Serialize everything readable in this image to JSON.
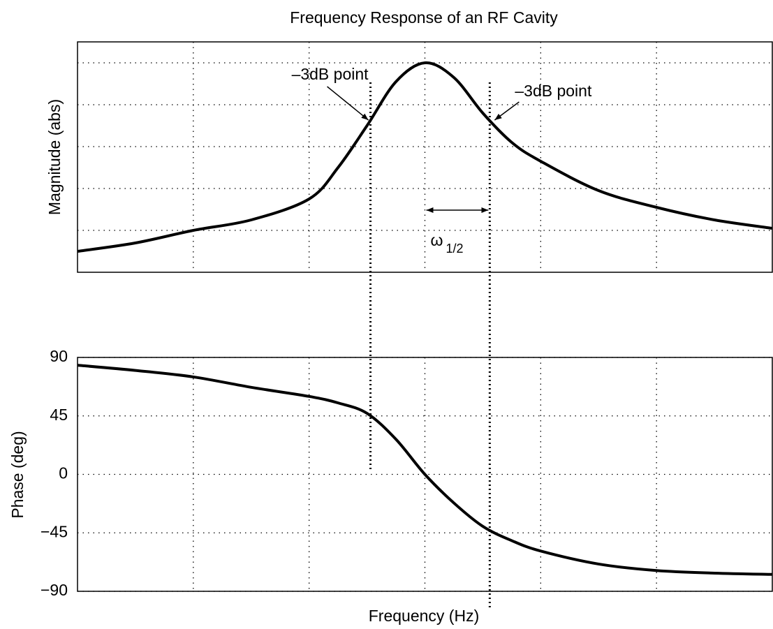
{
  "chart_data": [
    {
      "type": "line",
      "title": "Frequency Response of an RF Cavity",
      "ylabel": "Magnitude (abs)",
      "x": [
        -3,
        -2.5,
        -2,
        -1.5,
        -1,
        -0.75,
        -0.5,
        -0.25,
        0,
        0.25,
        0.5,
        0.75,
        1,
        1.5,
        2,
        2.5,
        3
      ],
      "values": [
        0.1,
        0.14,
        0.2,
        0.25,
        0.35,
        0.5,
        0.7,
        0.91,
        1.0,
        0.93,
        0.76,
        0.62,
        0.53,
        0.39,
        0.31,
        0.25,
        0.21
      ],
      "color": "#000000",
      "xlim": [
        -3,
        3
      ],
      "xticks": [
        -2,
        -1,
        0,
        1,
        2
      ],
      "ylim": [
        0,
        1.1
      ],
      "yticks": [
        0.2,
        0.4,
        0.6,
        0.8,
        1.0
      ],
      "grid": true,
      "markers": [
        -0.47,
        0.56
      ],
      "annotations": [
        "–3dB point",
        "–3dB point"
      ],
      "width_label": {
        "text": "ω",
        "subscript": "1/2"
      }
    },
    {
      "type": "line",
      "ylabel": "Phase (deg)",
      "xlabel": "Frequency (Hz)",
      "x": [
        -3,
        -2.5,
        -2,
        -1.5,
        -1,
        -0.75,
        -0.5,
        -0.25,
        0,
        0.25,
        0.5,
        0.75,
        1,
        1.5,
        2,
        2.5,
        3
      ],
      "values": [
        84,
        80,
        75,
        67,
        60,
        55,
        47,
        27,
        0,
        -22,
        -40,
        -51,
        -59,
        -69,
        -74,
        -76,
        -77
      ],
      "color": "#000000",
      "xlim": [
        -3,
        3
      ],
      "xticks": [
        -2,
        -1,
        0,
        1,
        2
      ],
      "ylim": [
        -90,
        90
      ],
      "yticks": [
        {
          "value": -90,
          "label": "−90"
        },
        {
          "value": -45,
          "label": "−45"
        },
        0,
        45,
        90
      ],
      "grid": true
    }
  ]
}
